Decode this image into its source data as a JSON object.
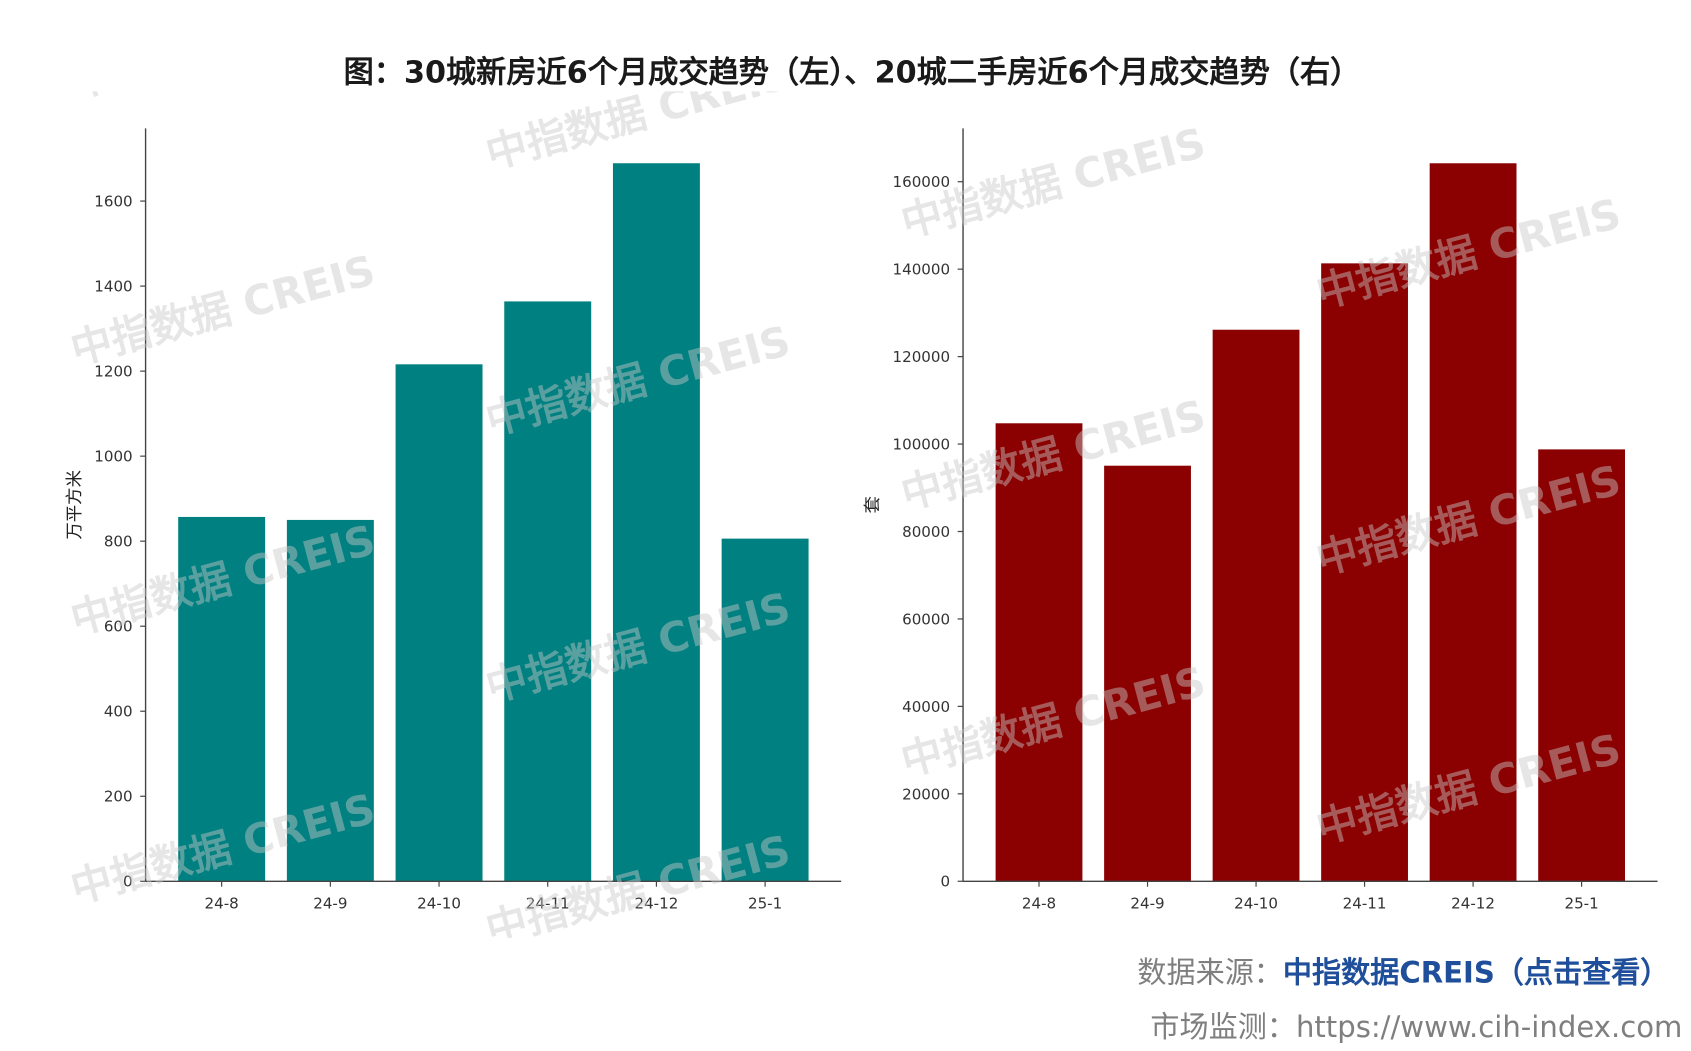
{
  "title": "图：30城新房近6个月成交趋势（左）、20城二手房近6个月成交趋势（右）",
  "watermark": "中指数据 CREIS",
  "chart_data": [
    {
      "type": "bar",
      "categories": [
        "24-8",
        "24-9",
        "24-10",
        "24-11",
        "24-12",
        "25-1"
      ],
      "values": [
        857,
        850,
        1216,
        1364,
        1689,
        806
      ],
      "xlabel": "",
      "ylabel": "万平方米",
      "ylim": [
        0,
        1771
      ],
      "yticks": [
        0,
        200,
        400,
        600,
        800,
        1000,
        1200,
        1400,
        1600
      ],
      "color": "#008080",
      "grid": false
    },
    {
      "type": "bar",
      "categories": [
        "24-8",
        "24-9",
        "24-10",
        "24-11",
        "24-12",
        "25-1"
      ],
      "values": [
        104750,
        95050,
        126150,
        141330,
        164220,
        98780
      ],
      "xlabel": "",
      "ylabel": "套",
      "ylim": [
        0,
        172200
      ],
      "yticks": [
        0,
        20000,
        40000,
        60000,
        80000,
        100000,
        120000,
        140000,
        160000
      ],
      "color": "#8B0000",
      "grid": false
    }
  ],
  "footer": {
    "source_label": "数据来源：",
    "source_link": "中指数据CREIS（点击查看）",
    "monitor_label": "市场监测：",
    "monitor_url": "https://www.cih-index.com"
  },
  "colors": {
    "link": "#1F4E9A",
    "footer_text": "#7F7F7F",
    "title": "#1A1A1A"
  }
}
